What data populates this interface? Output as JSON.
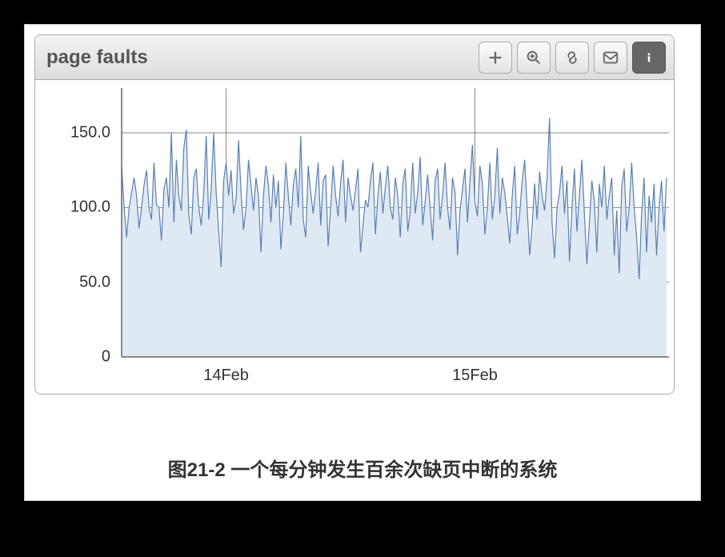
{
  "panel": {
    "title": "page faults",
    "toolbar_icons": [
      "plus-icon",
      "zoom-icon",
      "link-icon",
      "mail-icon",
      "info-icon"
    ]
  },
  "caption": "图21-2 一个每分钟发生百余次缺页中断的系统",
  "chart": {
    "type": "area-line",
    "background_color": "#ffffff",
    "plot_background_color": "#ffffff",
    "area_fill_color": "#dfe9f4",
    "line_color": "#5b80b2",
    "line_width": 1.2,
    "grid_color": "#888888",
    "axis_color": "#666666",
    "tick_font_size": 20,
    "tick_font_color": "#333333",
    "y_axis": {
      "min": 0,
      "max": 180,
      "ticks": [
        0,
        50.0,
        100.0,
        150.0
      ],
      "tick_labels": [
        "0",
        "50.0",
        "100.0",
        "150.0"
      ]
    },
    "x_axis": {
      "min": 0,
      "max": 220,
      "ticks": [
        42,
        142
      ],
      "tick_labels": [
        "14Feb",
        "15Feb"
      ]
    },
    "values": [
      128,
      100,
      80,
      100,
      110,
      120,
      108,
      86,
      100,
      115,
      125,
      100,
      92,
      130,
      102,
      100,
      78,
      112,
      120,
      100,
      150,
      90,
      132,
      108,
      98,
      140,
      152,
      95,
      82,
      120,
      126,
      100,
      88,
      110,
      148,
      92,
      112,
      150,
      110,
      85,
      60,
      118,
      130,
      108,
      125,
      96,
      106,
      145,
      110,
      85,
      100,
      132,
      115,
      98,
      120,
      108,
      70,
      108,
      128,
      115,
      90,
      122,
      100,
      118,
      72,
      96,
      130,
      108,
      88,
      115,
      126,
      100,
      148,
      92,
      80,
      128,
      110,
      96,
      112,
      130,
      88,
      118,
      122,
      74,
      100,
      128,
      108,
      94,
      116,
      132,
      90,
      120,
      108,
      98,
      112,
      126,
      70,
      88,
      105,
      100,
      118,
      130,
      82,
      108,
      124,
      96,
      114,
      128,
      100,
      92,
      120,
      108,
      80,
      116,
      126,
      84,
      98,
      130,
      96,
      110,
      134,
      88,
      104,
      122,
      100,
      78,
      118,
      126,
      92,
      108,
      130,
      100,
      85,
      120,
      110,
      68,
      98,
      112,
      126,
      90,
      118,
      142,
      104,
      94,
      128,
      116,
      82,
      100,
      130,
      92,
      108,
      140,
      96,
      120,
      110,
      94,
      76,
      108,
      128,
      82,
      96,
      118,
      132,
      100,
      68,
      88,
      116,
      92,
      124,
      108,
      98,
      120,
      160,
      90,
      66,
      100,
      110,
      128,
      96,
      118,
      64,
      100,
      126,
      84,
      108,
      132,
      96,
      62,
      90,
      118,
      104,
      70,
      116,
      100,
      128,
      92,
      108,
      120,
      68,
      98,
      56,
      114,
      126,
      84,
      100,
      130,
      100,
      80,
      52,
      96,
      120,
      70,
      108,
      90,
      116,
      68,
      100,
      118,
      84,
      120
    ]
  }
}
